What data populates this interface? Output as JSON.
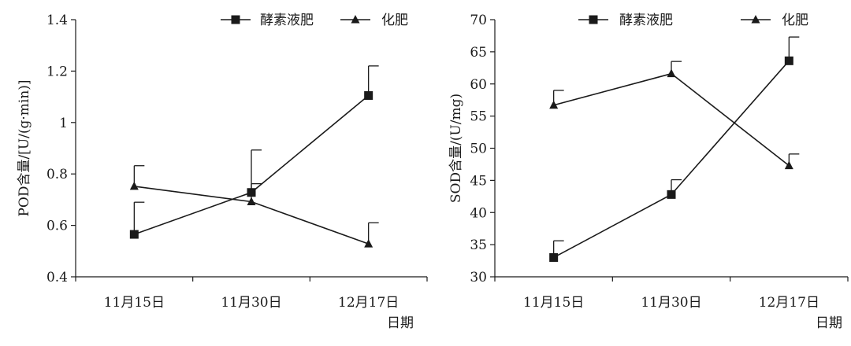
{
  "chart_data": [
    {
      "type": "line",
      "title": "",
      "ylabel": "POD含量/[U/(g·min)]",
      "xlabel": "日期",
      "categories": [
        "11月15日",
        "11月30日",
        "12月17日"
      ],
      "ylim": [
        0.4,
        1.4
      ],
      "yticks": [
        "0.4",
        "0.6",
        "0.8",
        "1",
        "1.2",
        "1.4"
      ],
      "legend_position": "top-right",
      "series": [
        {
          "name": "酵素液肥",
          "marker": "square",
          "values": [
            0.565,
            0.728,
            1.105
          ],
          "error": [
            0.125,
            0.165,
            0.115
          ]
        },
        {
          "name": "化肥",
          "marker": "triangle",
          "values": [
            0.752,
            0.692,
            0.528
          ],
          "error": [
            0.08,
            0.07,
            0.082
          ]
        }
      ]
    },
    {
      "type": "line",
      "title": "",
      "ylabel": "SOD含量/(U/mg)",
      "xlabel": "日期",
      "categories": [
        "11月15日",
        "11月30日",
        "12月17日"
      ],
      "ylim": [
        30,
        70
      ],
      "yticks": [
        "30",
        "35",
        "40",
        "45",
        "50",
        "55",
        "60",
        "65",
        "70"
      ],
      "legend_position": "top-right",
      "series": [
        {
          "name": "酵素液肥",
          "marker": "square",
          "values": [
            33.0,
            42.8,
            63.6
          ],
          "error": [
            2.6,
            2.3,
            3.7
          ]
        },
        {
          "name": "化肥",
          "marker": "triangle",
          "values": [
            56.7,
            61.6,
            47.3
          ],
          "error": [
            2.3,
            1.9,
            1.8
          ]
        }
      ]
    }
  ]
}
